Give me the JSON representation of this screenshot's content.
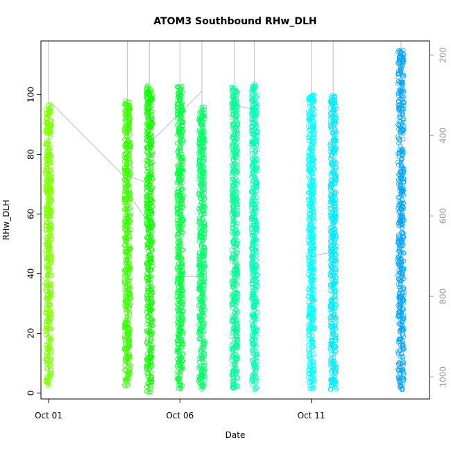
{
  "chart_data": {
    "type": "scatter",
    "title": "ATOM3 Southbound RHw_DLH",
    "xlabel": "Date",
    "ylabel": "RHw_DLH",
    "x_tick_labels": [
      "Oct 01",
      "Oct 06",
      "Oct 11"
    ],
    "x_ticks": [
      "2016-10-01",
      "2016-10-06",
      "2016-10-11"
    ],
    "xlim": [
      "2016-09-30T17:00",
      "2016-10-15T12:00"
    ],
    "ylim": [
      -2,
      118
    ],
    "y_ticks": [
      0,
      20,
      40,
      60,
      80,
      100
    ],
    "y2_ticks": [
      200,
      400,
      600,
      800,
      1000
    ],
    "y2lim": [
      1055,
      165
    ],
    "y2_note": "secondary axis on right, inverted (pressure-like), gray line overlay",
    "marker": "open circle",
    "grid": false,
    "legend": "none",
    "colors": {
      "line": "#bbbbbb",
      "right_axis": "#9a9a9a"
    },
    "flights": [
      {
        "date": "2016-10-01T00:00",
        "ymin": 2,
        "ymax": 97,
        "color": "#80ff00"
      },
      {
        "date": "2016-10-04T00:00",
        "ymin": 2,
        "ymax": 98,
        "color": "#3cff00"
      },
      {
        "date": "2016-10-04T20:00",
        "ymin": 0,
        "ymax": 103,
        "color": "#10ff00"
      },
      {
        "date": "2016-10-06T00:00",
        "ymin": 1,
        "ymax": 103,
        "color": "#00ff40"
      },
      {
        "date": "2016-10-06T20:00",
        "ymin": 1,
        "ymax": 96,
        "color": "#00ff6a"
      },
      {
        "date": "2016-10-08T02:00",
        "ymin": 1,
        "ymax": 103,
        "color": "#00ff96"
      },
      {
        "date": "2016-10-08T20:00",
        "ymin": 1,
        "ymax": 104,
        "color": "#00ffb6"
      },
      {
        "date": "2016-10-11T00:00",
        "ymin": 1,
        "ymax": 100,
        "color": "#00ffff"
      },
      {
        "date": "2016-10-11T20:00",
        "ymin": 1,
        "ymax": 100,
        "color": "#00eaff"
      },
      {
        "date": "2016-10-14T10:00",
        "ymin": 1,
        "ymax": 115,
        "color": "#00a6ff"
      }
    ],
    "line_overlay": {
      "description": "altitude/pressure trace on secondary axis",
      "segments": [
        [
          [
            "2016-10-01T00:00",
            1000
          ],
          [
            "2016-10-01T00:00",
            165
          ]
        ],
        [
          [
            "2016-10-01T02:00",
            318
          ],
          [
            "2016-10-04T00:00",
            510
          ]
        ],
        [
          [
            "2016-10-04T00:00",
            500
          ],
          [
            "2016-10-04T20:00",
            520
          ]
        ],
        [
          [
            "2016-10-04T00:00",
            1000
          ],
          [
            "2016-10-04T00:00",
            165
          ]
        ],
        [
          [
            "2016-10-04T20:00",
            1000
          ],
          [
            "2016-10-04T20:00",
            165
          ]
        ],
        [
          [
            "2016-10-06T00:00",
            1000
          ],
          [
            "2016-10-06T00:00",
            165
          ]
        ],
        [
          [
            "2016-10-06T20:00",
            1000
          ],
          [
            "2016-10-06T20:00",
            165
          ]
        ],
        [
          [
            "2016-10-08T02:00",
            1000
          ],
          [
            "2016-10-08T02:00",
            165
          ]
        ],
        [
          [
            "2016-10-08T20:00",
            1000
          ],
          [
            "2016-10-08T20:00",
            165
          ]
        ],
        [
          [
            "2016-10-11T00:00",
            1000
          ],
          [
            "2016-10-11T00:00",
            165
          ]
        ],
        [
          [
            "2016-10-11T20:00",
            1000
          ],
          [
            "2016-10-11T20:00",
            165
          ]
        ],
        [
          [
            "2016-10-14T10:00",
            1000
          ],
          [
            "2016-10-14T10:00",
            165
          ]
        ],
        [
          [
            "2016-10-04T00:00",
            540
          ],
          [
            "2016-10-04T20:00",
            620
          ]
        ],
        [
          [
            "2016-10-04T20:00",
            420
          ],
          [
            "2016-10-06T20:00",
            290
          ]
        ],
        [
          [
            "2016-10-06T00:00",
            750
          ],
          [
            "2016-10-06T20:00",
            750
          ]
        ],
        [
          [
            "2016-10-08T02:00",
            325
          ],
          [
            "2016-10-08T20:00",
            335
          ]
        ],
        [
          [
            "2016-10-11T00:00",
            700
          ],
          [
            "2016-10-11T20:00",
            690
          ]
        ]
      ]
    }
  }
}
